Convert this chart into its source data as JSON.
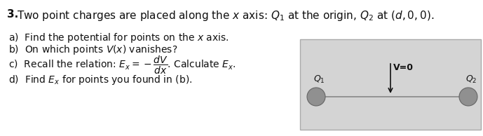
{
  "title_bold": "3.",
  "title_rest": " Two point charges are placed along the $x$ axis: $Q_1$ at the origin, $Q_2$ at $(d, 0, 0)$.",
  "items": [
    "a)  Find the potential for points on the $x$ axis.",
    "b)  On which points $V(x)$ vanishes?",
    "c)  Recall the relation: $E_x = -\\dfrac{dV}{dx}$. Calculate $E_x$.",
    "d)  Find $E_x$ for points you found in (b)."
  ],
  "box_facecolor": "#d4d4d4",
  "box_edgecolor": "#aaaaaa",
  "line_color": "#888888",
  "charge_facecolor": "#909090",
  "charge_edgecolor": "#666666",
  "arrow_color": "#111111",
  "text_color": "#111111",
  "background": "#ffffff",
  "label_Q1": "$Q_1$",
  "label_Q2": "$Q_2$",
  "label_V0": "V=0"
}
